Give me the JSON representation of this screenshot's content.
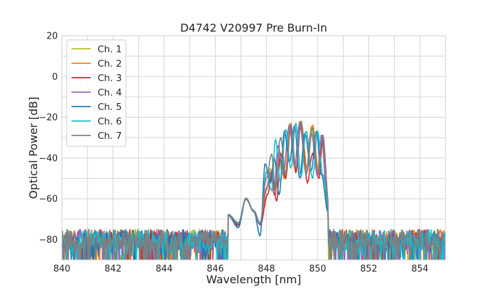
{
  "chart_data": {
    "type": "line",
    "title": "D4742 V20997 Pre Burn-In",
    "xlabel": "Wavelength [nm]",
    "ylabel": "Optical Power [dB]",
    "xlim": [
      840,
      855
    ],
    "ylim": [
      -90,
      20
    ],
    "xticks": [
      840,
      842,
      844,
      846,
      848,
      850,
      852,
      854
    ],
    "yticks": [
      -80,
      -60,
      -40,
      -20,
      0,
      20
    ],
    "grid": true,
    "legend_position": "top-left",
    "series": [
      {
        "name": "Ch. 1",
        "color": "#bcbd22",
        "seed": 11,
        "points": [
          [
            846.5,
            -68
          ],
          [
            846.9,
            -72
          ],
          [
            847.2,
            -60
          ],
          [
            847.5,
            -66
          ],
          [
            847.75,
            -72
          ],
          [
            848.0,
            -56
          ],
          [
            848.15,
            -45
          ],
          [
            848.3,
            -58
          ],
          [
            848.45,
            -40
          ],
          [
            848.65,
            -48
          ],
          [
            848.9,
            -25
          ],
          [
            849.1,
            -45
          ],
          [
            849.3,
            -22
          ],
          [
            849.55,
            -48
          ],
          [
            849.75,
            -25
          ],
          [
            850.0,
            -46
          ],
          [
            850.15,
            -31
          ],
          [
            850.4,
            -66
          ]
        ]
      },
      {
        "name": "Ch. 2",
        "color": "#ff7f0e",
        "seed": 23,
        "points": [
          [
            846.5,
            -68
          ],
          [
            846.9,
            -72
          ],
          [
            847.2,
            -60
          ],
          [
            847.5,
            -66
          ],
          [
            847.75,
            -72
          ],
          [
            848.05,
            -54
          ],
          [
            848.2,
            -46
          ],
          [
            848.35,
            -58
          ],
          [
            848.5,
            -38
          ],
          [
            848.7,
            -50
          ],
          [
            848.95,
            -23
          ],
          [
            849.15,
            -46
          ],
          [
            849.35,
            -22
          ],
          [
            849.6,
            -46
          ],
          [
            849.8,
            -24
          ],
          [
            850.05,
            -48
          ],
          [
            850.2,
            -30
          ],
          [
            850.45,
            -64
          ]
        ]
      },
      {
        "name": "Ch. 3",
        "color": "#d62728",
        "seed": 37,
        "points": [
          [
            846.5,
            -68
          ],
          [
            846.9,
            -73
          ],
          [
            847.2,
            -60
          ],
          [
            847.5,
            -66
          ],
          [
            847.75,
            -73
          ],
          [
            848.05,
            -58
          ],
          [
            848.2,
            -48
          ],
          [
            848.4,
            -61
          ],
          [
            848.55,
            -38
          ],
          [
            848.75,
            -50
          ],
          [
            848.95,
            -25
          ],
          [
            849.15,
            -47
          ],
          [
            849.35,
            -23
          ],
          [
            849.6,
            -52
          ],
          [
            849.8,
            -38
          ],
          [
            850.05,
            -50
          ],
          [
            850.2,
            -31
          ],
          [
            850.45,
            -66
          ]
        ]
      },
      {
        "name": "Ch. 4",
        "color": "#9467bd",
        "seed": 41,
        "points": [
          [
            846.5,
            -68
          ],
          [
            846.9,
            -72
          ],
          [
            847.2,
            -60
          ],
          [
            847.5,
            -66
          ],
          [
            847.75,
            -72
          ],
          [
            848.0,
            -55
          ],
          [
            848.15,
            -47
          ],
          [
            848.3,
            -58
          ],
          [
            848.45,
            -34
          ],
          [
            848.65,
            -47
          ],
          [
            848.9,
            -24
          ],
          [
            849.1,
            -44
          ],
          [
            849.3,
            -23
          ],
          [
            849.55,
            -47
          ],
          [
            849.75,
            -28
          ],
          [
            850.0,
            -49
          ],
          [
            850.15,
            -29
          ],
          [
            850.4,
            -65
          ]
        ]
      },
      {
        "name": "Ch. 5",
        "color": "#1f77b4",
        "seed": 53,
        "points": [
          [
            846.5,
            -68
          ],
          [
            846.9,
            -74
          ],
          [
            847.2,
            -60
          ],
          [
            847.5,
            -66
          ],
          [
            847.75,
            -78
          ],
          [
            847.95,
            -43
          ],
          [
            848.15,
            -52
          ],
          [
            848.3,
            -40
          ],
          [
            848.5,
            -58
          ],
          [
            848.7,
            -27
          ],
          [
            848.9,
            -42
          ],
          [
            849.1,
            -24
          ],
          [
            849.3,
            -50
          ],
          [
            849.5,
            -28
          ],
          [
            849.75,
            -46
          ],
          [
            849.95,
            -27
          ],
          [
            850.15,
            -48
          ],
          [
            850.4,
            -66
          ]
        ]
      },
      {
        "name": "Ch. 6",
        "color": "#17becf",
        "seed": 67,
        "points": [
          [
            846.5,
            -68
          ],
          [
            846.9,
            -72
          ],
          [
            847.2,
            -60
          ],
          [
            847.5,
            -66
          ],
          [
            847.75,
            -72
          ],
          [
            848.0,
            -47
          ],
          [
            848.2,
            -56
          ],
          [
            848.35,
            -31
          ],
          [
            848.55,
            -52
          ],
          [
            848.75,
            -26
          ],
          [
            848.95,
            -45
          ],
          [
            849.15,
            -23
          ],
          [
            849.35,
            -49
          ],
          [
            849.55,
            -27
          ],
          [
            849.8,
            -50
          ],
          [
            850.0,
            -27
          ],
          [
            850.2,
            -48
          ],
          [
            850.45,
            -66
          ]
        ]
      },
      {
        "name": "Ch. 7",
        "color": "#7f7f7f",
        "seed": 79,
        "points": [
          [
            846.5,
            -68
          ],
          [
            846.9,
            -72
          ],
          [
            847.2,
            -60
          ],
          [
            847.5,
            -66
          ],
          [
            847.75,
            -72
          ],
          [
            848.0,
            -50
          ],
          [
            848.2,
            -38
          ],
          [
            848.35,
            -55
          ],
          [
            848.55,
            -30
          ],
          [
            848.75,
            -48
          ],
          [
            848.95,
            -24
          ],
          [
            849.15,
            -45
          ],
          [
            849.35,
            -22
          ],
          [
            849.55,
            -48
          ],
          [
            849.8,
            -25
          ],
          [
            850.0,
            -47
          ],
          [
            850.2,
            -29
          ],
          [
            850.45,
            -64
          ]
        ]
      }
    ]
  }
}
